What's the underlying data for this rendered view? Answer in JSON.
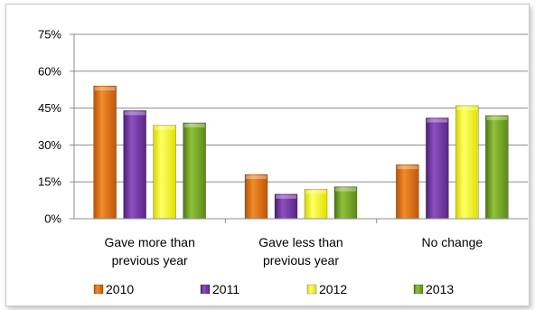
{
  "chart_data": {
    "type": "bar",
    "title": "",
    "xlabel": "",
    "ylabel": "",
    "categories": [
      [
        "Gave more than",
        "previous year"
      ],
      [
        "Gave less than",
        "previous year"
      ],
      [
        "No change"
      ]
    ],
    "ylim": [
      0,
      75
    ],
    "yticks": [
      "0%",
      "15%",
      "30%",
      "45%",
      "60%",
      "75%"
    ],
    "ytick_values": [
      0,
      15,
      30,
      45,
      60,
      75
    ],
    "grid": true,
    "legend_position": "bottom",
    "series": [
      {
        "name": "2010",
        "color": "#E36C0A",
        "values": [
          54,
          18,
          22
        ]
      },
      {
        "name": "2011",
        "color": "#7030A0",
        "values": [
          44,
          10,
          41
        ]
      },
      {
        "name": "2012",
        "color": "#FFFF00",
        "values": [
          38,
          12,
          46
        ]
      },
      {
        "name": "2013",
        "color": "#77A41E",
        "values": [
          39,
          13,
          42
        ]
      }
    ]
  }
}
